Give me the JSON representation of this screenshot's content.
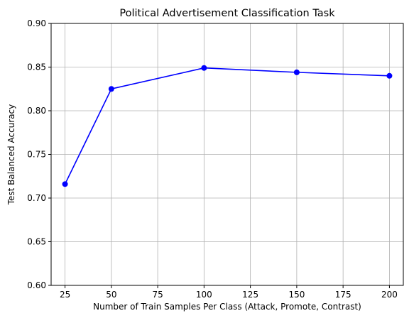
{
  "chart_data": {
    "type": "line",
    "title": "Political Advertisement Classification Task",
    "xlabel": "Number of Train Samples Per Class (Attack,  Promote, Contrast)",
    "ylabel": "Test Balanced Accuracy",
    "x": [
      25,
      50,
      100,
      150,
      200
    ],
    "series": [
      {
        "values": [
          0.716,
          0.825,
          0.849,
          0.844,
          0.84
        ]
      }
    ],
    "xlim": [
      17.5,
      207.5
    ],
    "ylim": [
      0.6,
      0.9
    ],
    "xticks": [
      25,
      50,
      75,
      100,
      125,
      150,
      175,
      200
    ],
    "xtick_labels": [
      "25",
      "50",
      "75",
      "100",
      "125",
      "150",
      "175",
      "200"
    ],
    "yticks": [
      0.6,
      0.65,
      0.7,
      0.75,
      0.8,
      0.85,
      0.9
    ],
    "ytick_labels": [
      "0.60",
      "0.65",
      "0.70",
      "0.75",
      "0.80",
      "0.85",
      "0.90"
    ],
    "grid": true,
    "line_color": "#0000ff",
    "marker": "circle"
  }
}
